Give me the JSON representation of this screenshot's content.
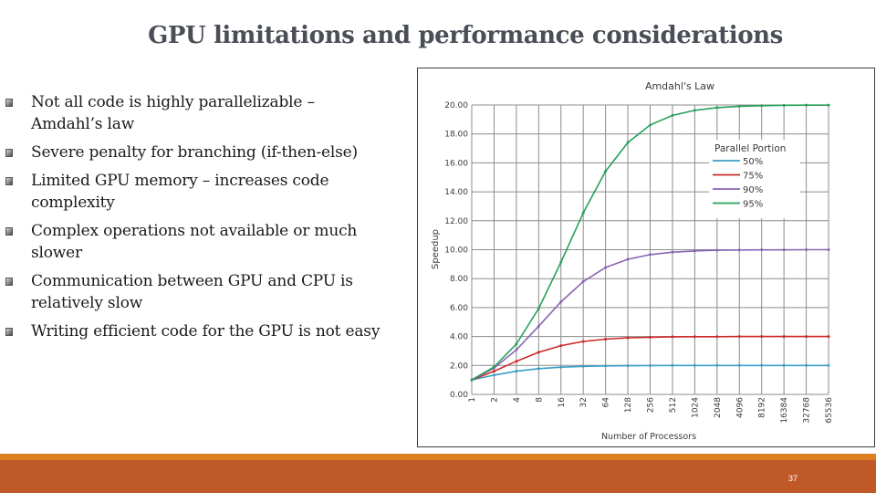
{
  "slide": {
    "title": "GPU limitations and performance considerations",
    "page_number": "37",
    "bullets": [
      {
        "line1": "Not all code is highly parallelizable  –",
        "line2": "Amdahl’s law"
      },
      {
        "line1": "Severe penalty for branching (if-then-else)",
        "line2": ""
      },
      {
        "line1": "Limited GPU memory – increases code",
        "line2": "complexity"
      },
      {
        "line1": "Complex operations not available or much",
        "line2": "slower"
      },
      {
        "line1": "Communication between GPU and CPU is",
        "line2": "relatively slow"
      },
      {
        "line1": "Writing efficient code for the GPU is not easy",
        "line2": ""
      }
    ],
    "colors": {
      "title": "#4a4f57",
      "footer_bar": "#bf5a28",
      "footer_strip": "#dd7f20"
    }
  },
  "chart_data": {
    "type": "line",
    "title": "Amdahl's Law",
    "xlabel": "Number of Processors",
    "ylabel": "Speedup",
    "x_scale": "log2",
    "x": [
      1,
      2,
      4,
      8,
      16,
      32,
      64,
      128,
      256,
      512,
      1024,
      2048,
      4096,
      8192,
      16384,
      32768,
      65536
    ],
    "x_tick_labels": [
      "1",
      "2",
      "4",
      "8",
      "16",
      "32",
      "64",
      "128",
      "256",
      "512",
      "1024",
      "2048",
      "4096",
      "8192",
      "16384",
      "32768",
      "65536"
    ],
    "y_tick_labels": [
      "0.00",
      "2.00",
      "4.00",
      "6.00",
      "8.00",
      "10.00",
      "12.00",
      "14.00",
      "16.00",
      "18.00",
      "20.00"
    ],
    "y_ticks": [
      0,
      2,
      4,
      6,
      8,
      10,
      12,
      14,
      16,
      18,
      20
    ],
    "ylim": [
      0,
      20
    ],
    "grid": true,
    "legend": {
      "title": "Parallel Portion",
      "placement": "top-right"
    },
    "series": [
      {
        "name": "50%",
        "color": "#3a9ec6",
        "values": [
          1.0,
          1.33,
          1.6,
          1.78,
          1.88,
          1.94,
          1.97,
          1.98,
          1.99,
          2.0,
          2.0,
          2.0,
          2.0,
          2.0,
          2.0,
          2.0,
          2.0
        ]
      },
      {
        "name": "75%",
        "color": "#cc2a2a",
        "values": [
          1.0,
          1.6,
          2.29,
          2.91,
          3.37,
          3.66,
          3.82,
          3.91,
          3.95,
          3.98,
          3.99,
          3.99,
          4.0,
          4.0,
          4.0,
          4.0,
          4.0
        ]
      },
      {
        "name": "90%",
        "color": "#8a64b4",
        "values": [
          1.0,
          1.82,
          3.08,
          4.71,
          6.4,
          7.8,
          8.77,
          9.34,
          9.66,
          9.83,
          9.91,
          9.96,
          9.98,
          9.99,
          9.99,
          10.0,
          10.0
        ]
      },
      {
        "name": "95%",
        "color": "#27a05a",
        "values": [
          1.0,
          1.9,
          3.48,
          5.93,
          9.14,
          12.55,
          15.42,
          17.41,
          18.62,
          19.28,
          19.63,
          19.82,
          19.91,
          19.95,
          19.98,
          19.99,
          19.99
        ]
      }
    ]
  }
}
